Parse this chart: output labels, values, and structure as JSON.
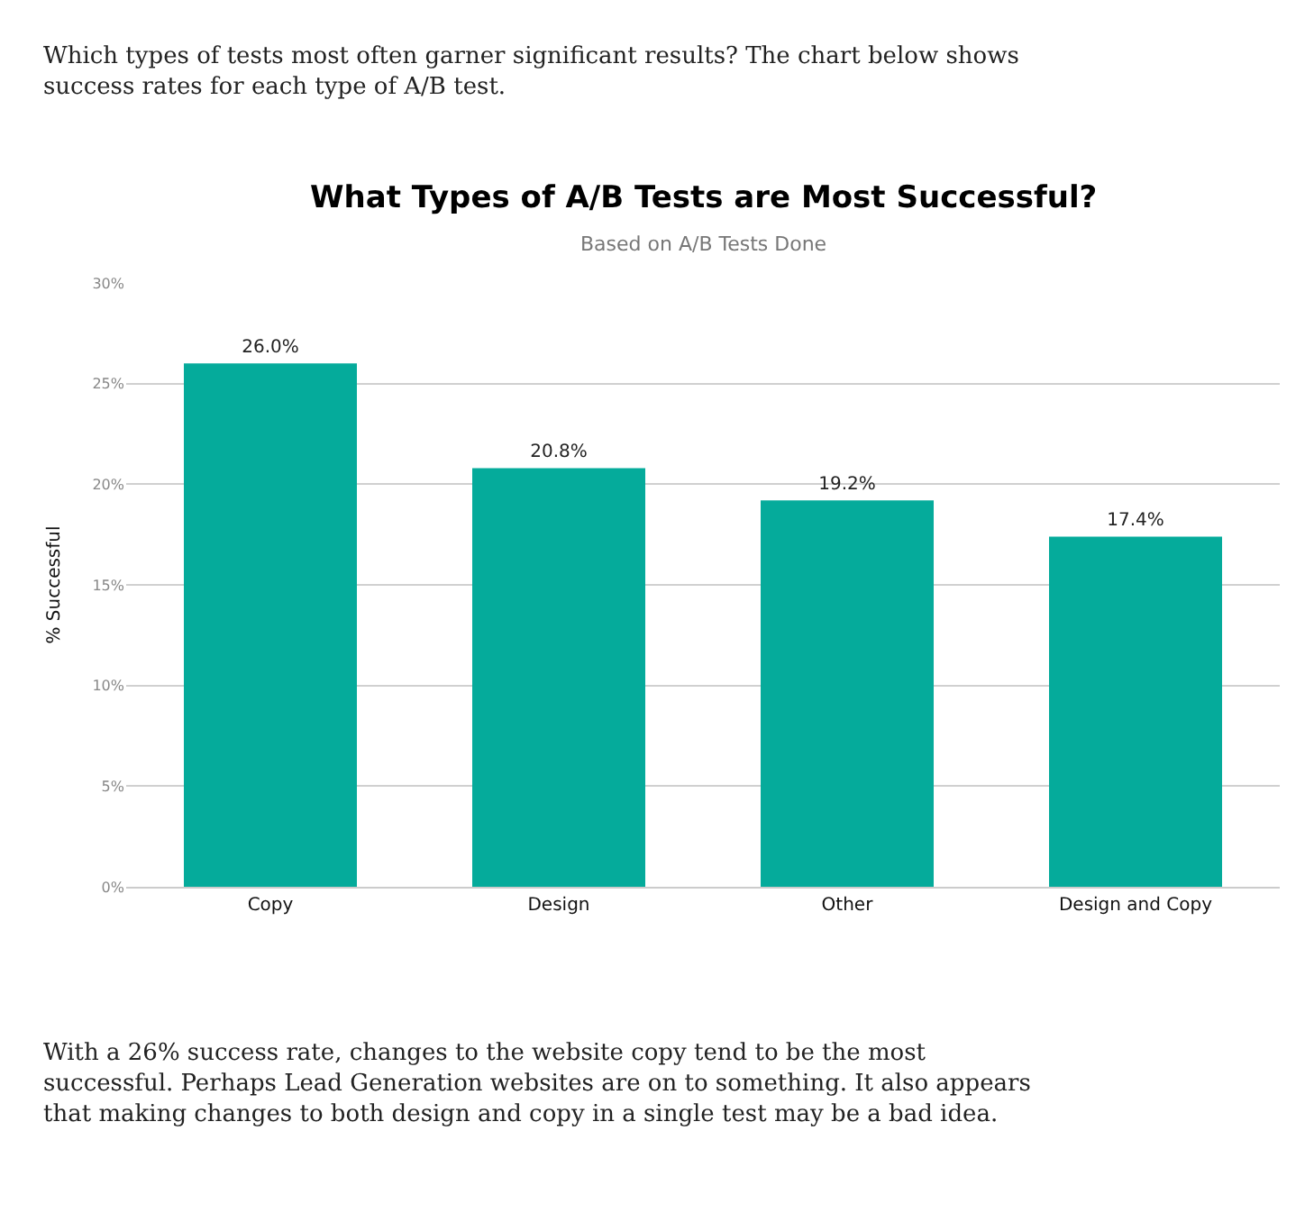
{
  "chart_data": {
    "type": "bar",
    "title": "What Types of A/B Tests are Most Successful?",
    "subtitle": "Based on A/B Tests Done",
    "ylabel": "% Successful",
    "categories": [
      "Copy",
      "Design",
      "Other",
      "Design and Copy"
    ],
    "values": [
      26.0,
      20.8,
      19.2,
      17.4
    ],
    "value_labels": [
      "26.0%",
      "20.8%",
      "19.2%",
      "17.4%"
    ],
    "color": "#05ab9b",
    "ylim": [
      0,
      30
    ],
    "yticks": [
      {
        "value": 0,
        "label": "0%"
      },
      {
        "value": 5,
        "label": "5%"
      },
      {
        "value": 10,
        "label": "10%"
      },
      {
        "value": 15,
        "label": "15%"
      },
      {
        "value": 20,
        "label": "20%"
      },
      {
        "value": 25,
        "label": "25%"
      },
      {
        "value": 30,
        "label": "30%"
      }
    ],
    "grid": "y",
    "annotations": [
      "Which types of tests most often garner significant results? The chart below shows success rates for each type of A/B test.",
      "With a 26% success rate, changes to the website copy tend to be the most successful. Perhaps Lead Generation websites are on to something. It also appears that making changes to both design and copy in a single test may be a bad idea."
    ]
  }
}
